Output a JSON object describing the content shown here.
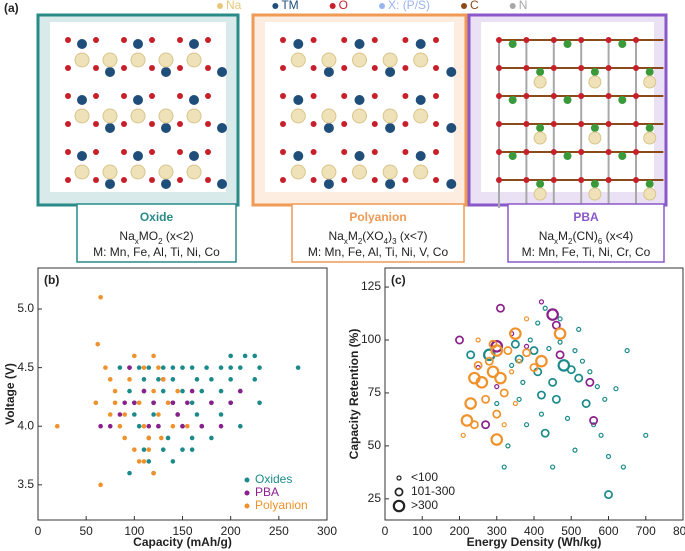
{
  "panel_a": {
    "label": "(a)",
    "legend": [
      {
        "text": "Na",
        "color": "#e8c878"
      },
      {
        "text": "TM",
        "color": "#1f4e7a"
      },
      {
        "text": "O",
        "color": "#c8202a"
      },
      {
        "text": "X: (P/S)",
        "color": "#9ab4f0"
      },
      {
        "text": "C",
        "color": "#8a4a1a"
      },
      {
        "text": "N",
        "color": "#a8a8a8"
      }
    ],
    "cards": [
      {
        "title": "Oxide",
        "color": "#2a8a88",
        "formula": [
          {
            "text": "Na"
          },
          {
            "text": "x",
            "sub": true
          },
          {
            "text": "MO"
          },
          {
            "text": "2",
            "sub": true
          },
          {
            "text": " (x<2)"
          }
        ],
        "metals": "M: Mn, Fe, Al, Ti, Ni, Co"
      },
      {
        "title": "Polyanion",
        "color": "#ef9a55",
        "formula": [
          {
            "text": "Na"
          },
          {
            "text": "x",
            "sub": true
          },
          {
            "text": "M"
          },
          {
            "text": "2",
            "sub": true
          },
          {
            "text": "(XO"
          },
          {
            "text": "4",
            "sub": true
          },
          {
            "text": ")"
          },
          {
            "text": "3",
            "sub": true
          },
          {
            "text": " (x<7)"
          }
        ],
        "metals": "M: Mn, Fe, Al, Ti, Ni, V, Co"
      },
      {
        "title": "PBA",
        "color": "#8a58c8",
        "formula": [
          {
            "text": "Na"
          },
          {
            "text": "x",
            "sub": true
          },
          {
            "text": "M"
          },
          {
            "text": "2",
            "sub": true
          },
          {
            "text": "(CN)"
          },
          {
            "text": "6",
            "sub": true
          },
          {
            "text": " (x<4)"
          }
        ],
        "metals": "M: Mn, Fe, Ti, Ni, Cr, Co"
      }
    ]
  },
  "chart_data": [
    {
      "type": "scatter",
      "panel_label": "(b)",
      "xlabel": "Capacity (mAh/g)",
      "ylabel": "Voltage (V)",
      "xlim": [
        0,
        300
      ],
      "xticks": [
        0,
        50,
        100,
        150,
        200,
        250,
        300
      ],
      "ylim": [
        3.2,
        5.35
      ],
      "yticks": [
        3.5,
        {
          "value": 4,
          "label": "4.0"
        },
        4.5,
        {
          "value": 5,
          "label": "5.0"
        }
      ],
      "legend": "lower right",
      "series": [
        {
          "name": "Oxides",
          "color": "#1b8a8a",
          "x": [
            270,
            230,
            210,
            200,
            190,
            175,
            160,
            150,
            140,
            130,
            115,
            105,
            95,
            85,
            225,
            200,
            180,
            165,
            140,
            125,
            110,
            210,
            190,
            170,
            150,
            130,
            110,
            95,
            230,
            200,
            180,
            160,
            140,
            120,
            100,
            190,
            165,
            145,
            120,
            100,
            210,
            170,
            150,
            125,
            105,
            180,
            160,
            135,
            115,
            150,
            130,
            110,
            140,
            115,
            120,
            95,
            160,
            200,
            215,
            225
          ],
          "values": [
            4.5,
            4.5,
            4.5,
            4.5,
            4.5,
            4.5,
            4.5,
            4.5,
            4.5,
            4.5,
            4.5,
            4.5,
            4.5,
            4.5,
            4.4,
            4.4,
            4.4,
            4.4,
            4.4,
            4.4,
            4.4,
            4.3,
            4.3,
            4.3,
            4.3,
            4.3,
            4.3,
            4.3,
            4.2,
            4.2,
            4.2,
            4.2,
            4.2,
            4.2,
            4.2,
            4.1,
            4.1,
            4.1,
            4.1,
            4.1,
            4.0,
            4.0,
            4.0,
            4.0,
            4.0,
            3.9,
            3.9,
            3.9,
            3.9,
            3.8,
            3.8,
            3.8,
            3.7,
            3.7,
            3.6,
            3.6,
            3.8,
            4.6,
            4.6,
            4.6
          ]
        },
        {
          "name": "PBA",
          "color": "#8b1f8b",
          "x": [
            75,
            90,
            100,
            110,
            120,
            125,
            130,
            140,
            150,
            155,
            160,
            170,
            180,
            190,
            200,
            85,
            115,
            145,
            95,
            210,
            65
          ],
          "values": [
            4.0,
            4.2,
            4.2,
            4.3,
            4.2,
            4.0,
            4.4,
            4.2,
            4.0,
            4.2,
            4.3,
            4.0,
            4.2,
            4.0,
            4.2,
            4.1,
            4.0,
            4.1,
            4.5,
            4.3,
            4.0
          ]
        },
        {
          "name": "Polyanion",
          "color": "#f0922b",
          "x": [
            20,
            65,
            62,
            65,
            70,
            75,
            80,
            80,
            85,
            90,
            95,
            100,
            105,
            110,
            110,
            115,
            115,
            120,
            120,
            125,
            128,
            130,
            135,
            140,
            100,
            110,
            120,
            90,
            75,
            60,
            145,
            155,
            125,
            105
          ],
          "values": [
            4.0,
            5.1,
            4.7,
            3.5,
            4.5,
            4.4,
            4.3,
            4.2,
            4.0,
            4.1,
            4.4,
            4.6,
            4.2,
            4.5,
            4.0,
            3.9,
            3.8,
            4.6,
            4.3,
            4.1,
            3.9,
            4.4,
            4.2,
            4.0,
            3.8,
            3.7,
            3.6,
            3.9,
            4.1,
            4.2,
            4.3,
            4.0,
            4.5,
            3.7
          ]
        }
      ]
    },
    {
      "type": "scatter",
      "panel_label": "(c)",
      "xlabel": "Energy Density (Wh/kg)",
      "ylabel": "Capacity Retention (%)",
      "xlim": [
        0,
        800
      ],
      "xticks": [
        0,
        100,
        200,
        300,
        400,
        500,
        600,
        700,
        800
      ],
      "ylim": [
        15,
        134
      ],
      "yticks": [
        25,
        50,
        75,
        100,
        125
      ],
      "size_classes": [
        "<100",
        "101-300",
        ">300"
      ],
      "legend": "lower left",
      "series": [
        {
          "color": "#1b8a8a",
          "x": [
            280,
            230,
            600,
            430,
            420,
            480,
            500,
            450,
            400,
            360,
            520,
            460,
            540,
            340,
            370,
            390,
            410,
            440,
            470,
            510,
            530,
            550,
            570,
            590,
            620,
            650,
            700,
            560,
            600,
            510,
            450,
            420,
            380,
            360,
            330,
            300,
            320,
            490,
            580,
            640,
            470,
            430,
            520,
            410,
            350
          ],
          "values": [
            93,
            93,
            27,
            56,
            74,
            88,
            86,
            80,
            95,
            91,
            82,
            72,
            70,
            88,
            80,
            100,
            108,
            96,
            99,
            95,
            90,
            85,
            78,
            72,
            77,
            95,
            55,
            60,
            45,
            48,
            40,
            65,
            60,
            72,
            50,
            70,
            40,
            63,
            55,
            40,
            110,
            115,
            105,
            85,
            98
          ],
          "sizes": [
            ">300",
            "101-300",
            "101-300",
            "101-300",
            "101-300",
            ">300",
            "101-300",
            "101-300",
            "101-300",
            "101-300",
            "101-300",
            "101-300",
            "101-300",
            "<100",
            "<100",
            "<100",
            "<100",
            "<100",
            "<100",
            "<100",
            "<100",
            "<100",
            "<100",
            "<100",
            "<100",
            "<100",
            "<100",
            "<100",
            "<100",
            "<100",
            "<100",
            "<100",
            "<100",
            "<100",
            "<100",
            "<100",
            "<100",
            "<100",
            "<100",
            "<100",
            "<100",
            "<100",
            "<100",
            "101-300",
            "101-300"
          ]
        },
        {
          "color": "#8b1f8b",
          "x": [
            200,
            250,
            300,
            310,
            340,
            420,
            450,
            460,
            470,
            550,
            560,
            300,
            270,
            380
          ],
          "values": [
            100,
            87,
            97,
            115,
            103,
            118,
            112,
            107,
            93,
            80,
            62,
            78,
            60,
            97
          ],
          "sizes": [
            "101-300",
            "<100",
            ">300",
            "101-300",
            "<100",
            "<100",
            ">300",
            "101-300",
            "101-300",
            "101-300",
            "101-300",
            "<100",
            "101-300",
            "<100"
          ]
        },
        {
          "color": "#f0922b",
          "x": [
            240,
            230,
            240,
            220,
            260,
            270,
            290,
            300,
            310,
            320,
            300,
            300,
            280,
            330,
            340,
            350,
            360,
            380,
            420,
            470,
            400,
            350,
            250,
            290,
            210,
            320,
            380,
            250
          ],
          "values": [
            82,
            70,
            60,
            62,
            80,
            72,
            85,
            95,
            82,
            75,
            53,
            65,
            90,
            95,
            85,
            70,
            90,
            94,
            90,
            103,
            87,
            103,
            88,
            98,
            55,
            60,
            110,
            100
          ],
          "sizes": [
            ">300",
            ">300",
            "101-300",
            ">300",
            ">300",
            "101-300",
            ">300",
            ">300",
            ">300",
            "101-300",
            ">300",
            "101-300",
            "101-300",
            "101-300",
            "<100",
            "<100",
            "<100",
            "101-300",
            ">300",
            ">300",
            "101-300",
            ">300",
            "101-300",
            "101-300",
            "<100",
            "<100",
            "<100",
            "<100"
          ]
        }
      ]
    }
  ]
}
